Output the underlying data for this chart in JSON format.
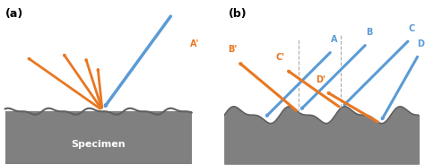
{
  "bg_color": "#ffffff",
  "orange": "#E87722",
  "blue": "#5B9BD5",
  "gray_fill": "#808080",
  "gray_line": "#606060",
  "dashed_color": "#aaaaaa",
  "panel_a_label": "(a)",
  "panel_b_label": "(b)",
  "specimen_label": "Specimen",
  "b_labels_incoming": [
    "A",
    "B",
    "C",
    "D"
  ],
  "b_labels_reflected": [
    "A'",
    "B'",
    "C'",
    "D'"
  ]
}
